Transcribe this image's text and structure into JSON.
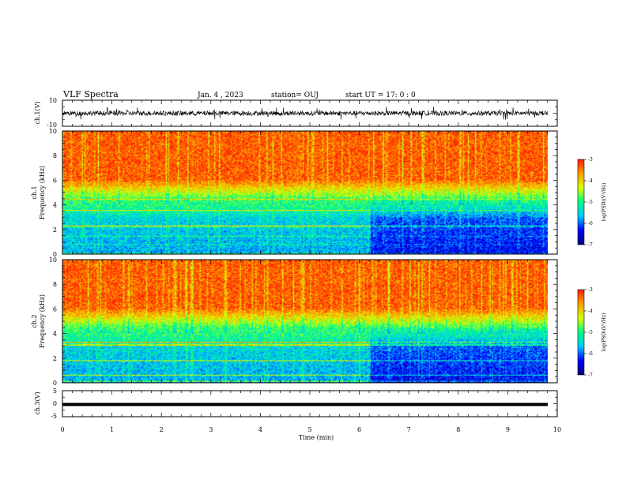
{
  "header": {
    "title": "VLF Spectra",
    "date": "Jan. 4 , 2023",
    "station": "station= OUJ",
    "start": "start UT =  17: 0 : 0"
  },
  "chart_data": [
    {
      "type": "line",
      "panel": "waveform",
      "ylabel": "ch.1(V)",
      "ylim": [
        -10,
        10
      ],
      "yticks": [
        "10",
        "-10"
      ],
      "xlim": [
        0,
        10
      ],
      "series": [
        {
          "values_description": "",
          "approx_range": [
            -2,
            2
          ]
        }
      ]
    },
    {
      "type": "heatmap",
      "panel": "ch1-spectrogram",
      "ylabel": "ch.1\nFrequency (kHz)",
      "ylim": [
        0,
        10
      ],
      "yticks": [
        "0",
        "2",
        "4",
        "6",
        "8",
        "10"
      ],
      "xlim": [
        0,
        10
      ],
      "change_time_min": 6.2,
      "colorbar": {
        "label": "log(PSD)(V²/Hz)",
        "range": [
          -7,
          -3
        ],
        "ticks": [
          "-3",
          "-4",
          "-5",
          "-6",
          "-7"
        ]
      }
    },
    {
      "type": "heatmap",
      "panel": "ch2-spectrogram",
      "ylabel": "ch.2\nFrequency (kHz)",
      "ylim": [
        0,
        10
      ],
      "yticks": [
        "0",
        "2",
        "4",
        "6",
        "8",
        "10"
      ],
      "xlim": [
        0,
        10
      ],
      "change_time_min": 6.2,
      "colorbar": {
        "label": "log(PSD)(V²/Hz)",
        "range": [
          -7,
          -3
        ],
        "ticks": [
          "-3",
          "-4",
          "-5",
          "-6",
          "-7"
        ]
      }
    },
    {
      "type": "line",
      "panel": "ch3",
      "ylabel": "ch.3(V)",
      "ylim": [
        -5,
        5
      ],
      "yticks": [
        "5",
        "0",
        "-5"
      ],
      "xlim": [
        0,
        10
      ],
      "series": [
        {
          "constant_value": -0.3
        }
      ]
    }
  ],
  "xaxis": {
    "label": "Time (min)",
    "ticks": [
      "0",
      "1",
      "2",
      "3",
      "4",
      "5",
      "6",
      "7",
      "8",
      "9",
      "10"
    ]
  },
  "colormap": [
    "#00007a",
    "#0000ff",
    "#00c8ff",
    "#00ff80",
    "#d8ff00",
    "#ffa000",
    "#ff1e00"
  ]
}
